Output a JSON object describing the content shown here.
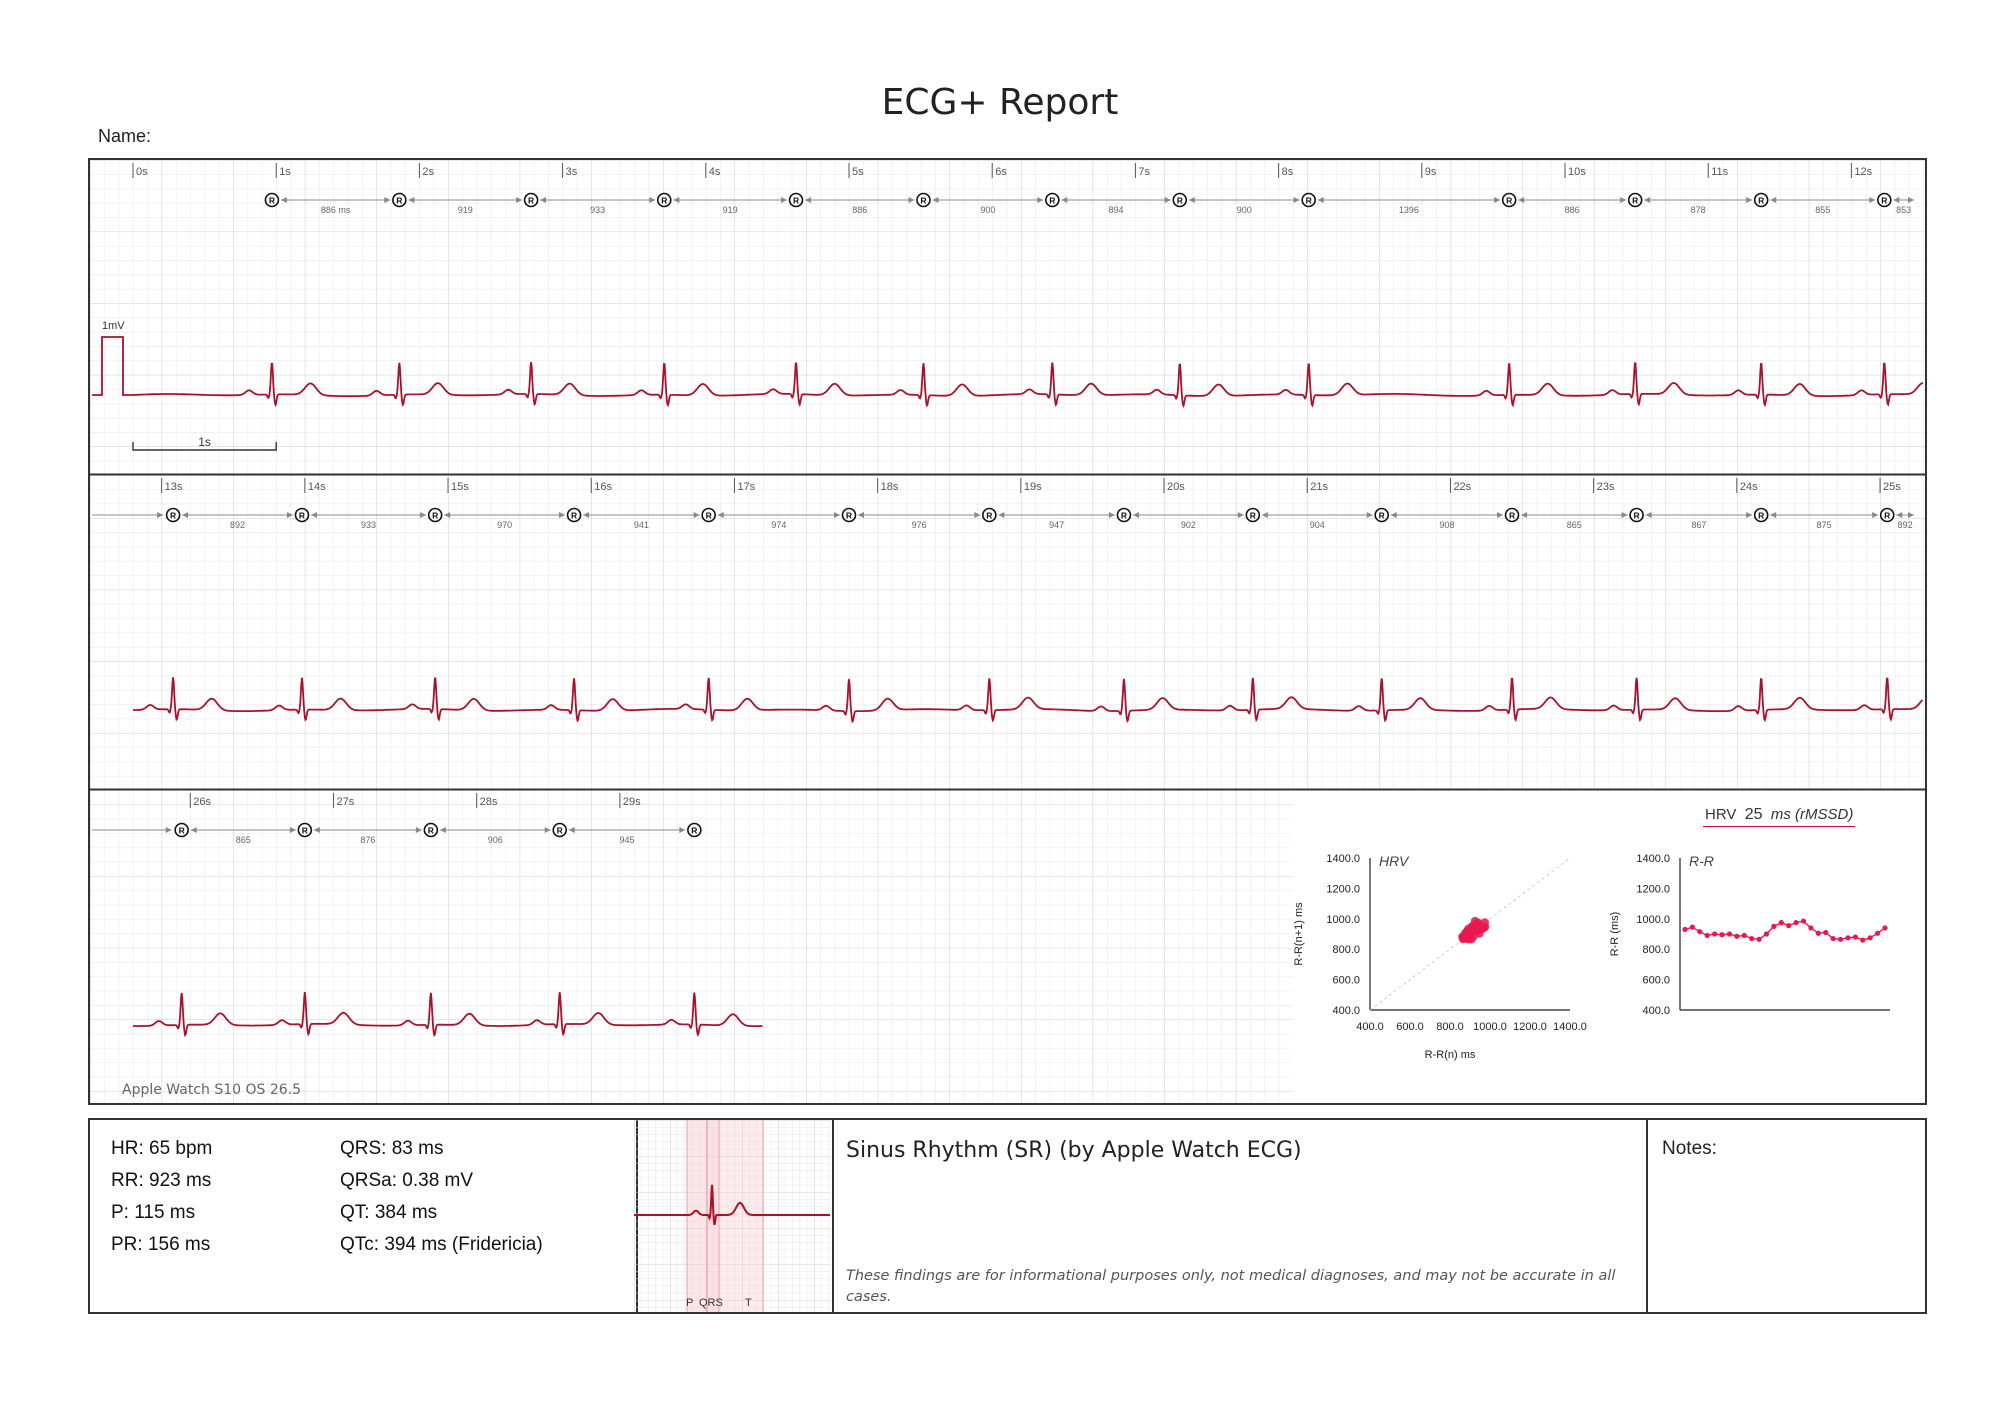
{
  "title": "ECG+ Report",
  "name_label": "Name:",
  "device": "Apple Watch S10   OS 26.5",
  "calibration": {
    "label": "1mV",
    "scale_label": "1s"
  },
  "colors": {
    "trace": "#a8122a",
    "grid_minor": "#e4e4e4",
    "grid_major": "#c9c9c9",
    "hrv": "#e8184f",
    "accent_line": "#d4004c"
  },
  "strips": [
    {
      "start": 0,
      "end": 12.8,
      "seconds": [
        "0s",
        "1s",
        "2s",
        "3s",
        "4s",
        "5s",
        "6s",
        "7s",
        "8s",
        "9s",
        "10s",
        "11s",
        "12s"
      ],
      "second_values": [
        0,
        1,
        2,
        3,
        4,
        5,
        6,
        7,
        8,
        9,
        10,
        11,
        12
      ],
      "r_peaks": [
        0.97,
        1.86,
        2.78,
        3.71,
        4.63,
        5.52,
        6.42,
        7.31,
        8.21,
        9.61,
        10.49,
        11.37,
        12.23
      ],
      "rr_labels": [
        "886 ms",
        "919",
        "933",
        "919",
        "886",
        "900",
        "894",
        "900",
        "1396",
        "886",
        "878",
        "855",
        "853"
      ]
    },
    {
      "start": 12.8,
      "end": 25.6,
      "seconds": [
        "13s",
        "14s",
        "15s",
        "16s",
        "17s",
        "18s",
        "19s",
        "20s",
        "21s",
        "22s",
        "23s",
        "24s",
        "25s"
      ],
      "second_values": [
        13,
        14,
        15,
        16,
        17,
        18,
        19,
        20,
        21,
        22,
        23,
        24,
        25
      ],
      "r_peaks": [
        13.08,
        13.98,
        14.91,
        15.88,
        16.82,
        17.8,
        18.78,
        19.72,
        20.62,
        21.52,
        22.43,
        23.3,
        24.17,
        25.05
      ],
      "rr_labels": [
        "892",
        "933",
        "970",
        "941",
        "974",
        "976",
        "947",
        "902",
        "904",
        "908",
        "865",
        "867",
        "875",
        "892"
      ]
    },
    {
      "start": 25.6,
      "end": 38.4,
      "trace_end": 30.0,
      "seconds": [
        "26s",
        "27s",
        "28s",
        "29s"
      ],
      "second_values": [
        26,
        27,
        28,
        29
      ],
      "r_peaks": [
        25.94,
        26.8,
        27.68,
        28.58,
        29.52
      ],
      "rr_labels": [
        "865",
        "876",
        "906",
        "945"
      ]
    }
  ],
  "stats": {
    "hr": "HR: 65 bpm",
    "rr": "RR: 923 ms",
    "p": "P: 115 ms",
    "pr": "PR: 156 ms",
    "qrs": "QRS: 83 ms",
    "qrsa": "QRSa: 0.38 mV",
    "qt": "QT: 384 ms",
    "qtc": "QTc: 394 ms (Fridericia)"
  },
  "complex_labels": {
    "p": "P",
    "qrs": "QRS",
    "t": "T"
  },
  "rhythm": "Sinus Rhythm (SR) (by Apple Watch ECG)",
  "disclaimer": "These findings are for informational purposes only, not medical diagnoses, and may not be accurate in all cases.",
  "notes_label": "Notes:",
  "hrv_summary": {
    "label": "HRV",
    "value": "25",
    "unit": "ms (rMSSD)"
  },
  "chart_data": [
    {
      "type": "scatter",
      "title": "HRV",
      "xlabel": "R-R(n) ms",
      "ylabel": "R-R(n+1) ms",
      "xlim": [
        400,
        1400
      ],
      "ylim": [
        400,
        1400
      ],
      "xticks": [
        "400.0",
        "600.0",
        "800.0",
        "1000.0",
        "1200.0",
        "1400.0"
      ],
      "yticks": [
        "400.0",
        "600.0",
        "800.0",
        "1000.0",
        "1200.0",
        "1400.0"
      ],
      "identity_line": true,
      "points": [
        [
          886,
          919
        ],
        [
          919,
          933
        ],
        [
          933,
          919
        ],
        [
          919,
          886
        ],
        [
          886,
          900
        ],
        [
          900,
          894
        ],
        [
          894,
          900
        ],
        [
          900,
          892
        ],
        [
          892,
          933
        ],
        [
          933,
          970
        ],
        [
          970,
          941
        ],
        [
          941,
          974
        ],
        [
          974,
          976
        ],
        [
          976,
          947
        ],
        [
          947,
          902
        ],
        [
          902,
          904
        ],
        [
          904,
          908
        ],
        [
          908,
          865
        ],
        [
          865,
          867
        ],
        [
          867,
          875
        ],
        [
          875,
          892
        ],
        [
          892,
          865
        ],
        [
          865,
          876
        ],
        [
          876,
          906
        ],
        [
          906,
          945
        ],
        [
          945,
          960
        ],
        [
          880,
          870
        ],
        [
          915,
          955
        ],
        [
          958,
          930
        ],
        [
          925,
          985
        ],
        [
          862,
          882
        ]
      ]
    },
    {
      "type": "line",
      "title": "R-R",
      "ylabel": "R-R (ms)",
      "ylim": [
        400,
        1400
      ],
      "yticks": [
        "400.0",
        "600.0",
        "800.0",
        "1000.0",
        "1200.0",
        "1400.0"
      ],
      "values": [
        930,
        945,
        915,
        890,
        900,
        895,
        900,
        885,
        890,
        870,
        865,
        900,
        950,
        975,
        955,
        975,
        985,
        940,
        905,
        910,
        870,
        865,
        875,
        880,
        860,
        875,
        905,
        940
      ]
    }
  ]
}
